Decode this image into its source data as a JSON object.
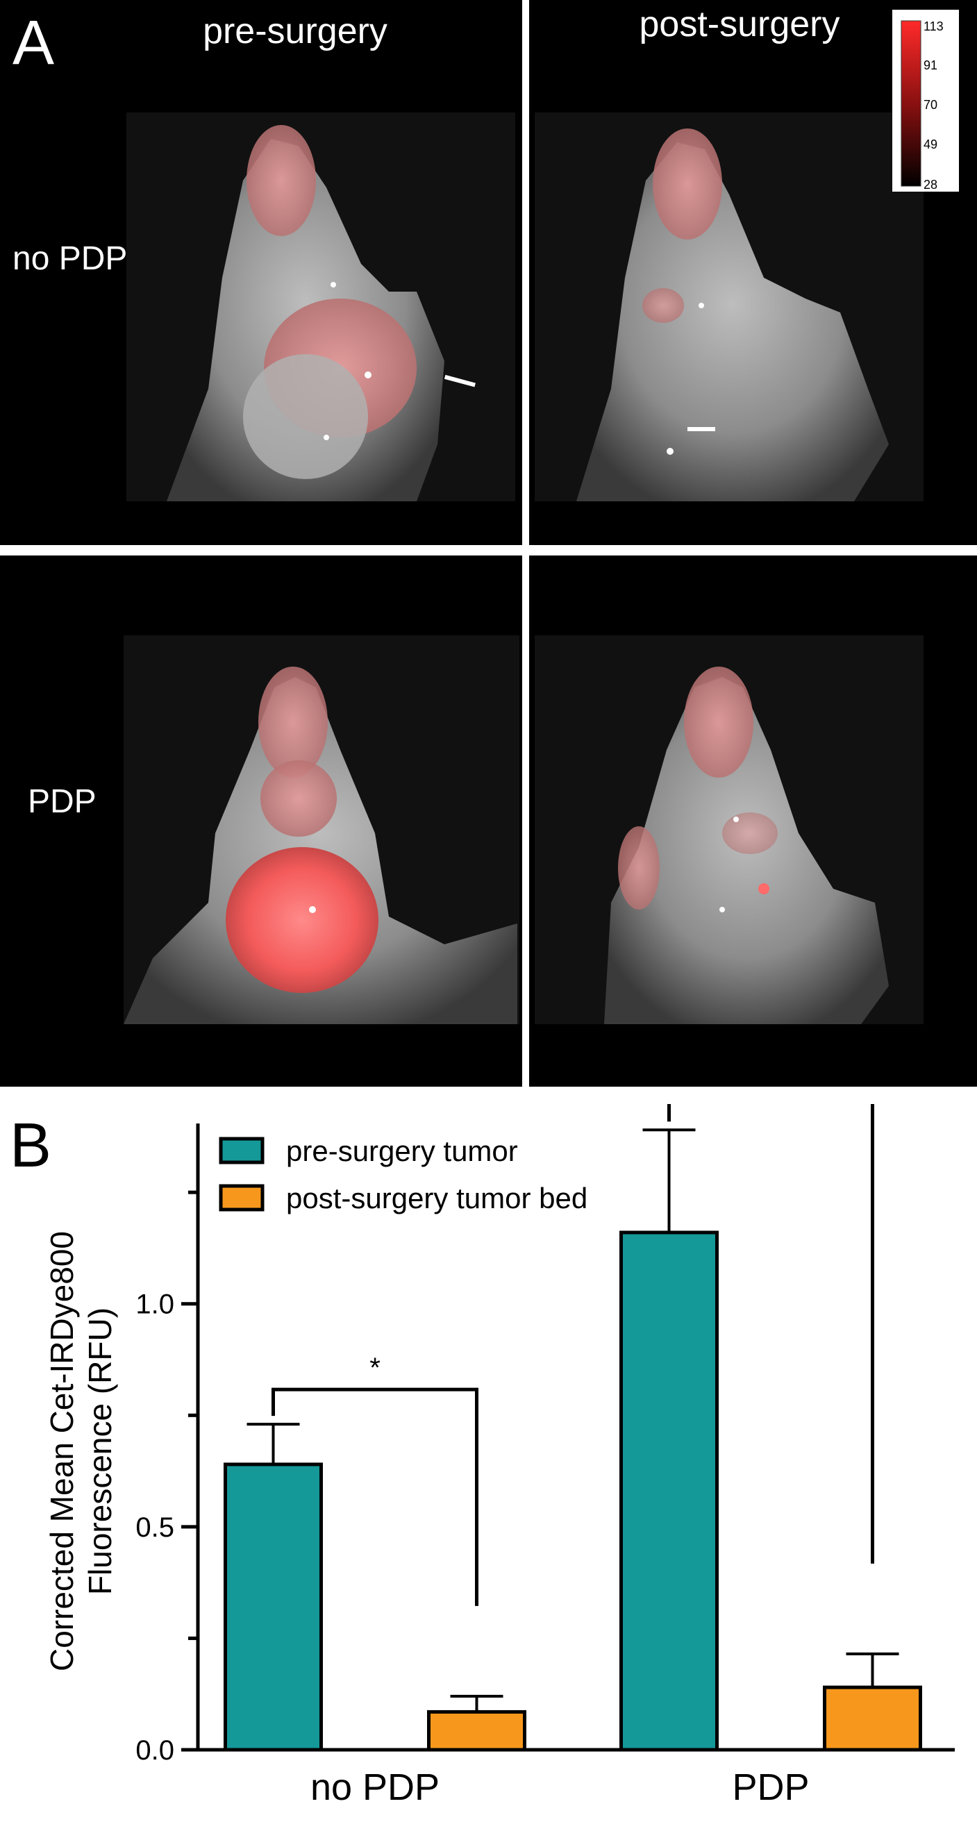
{
  "panel_a": {
    "letter": "A",
    "column_labels": [
      "pre-surgery",
      "post-surgery"
    ],
    "row_labels": [
      "no PDP",
      "PDP"
    ],
    "colorbar": {
      "ticks": [
        "113",
        "91",
        "70",
        "49",
        "28"
      ],
      "colors": {
        "top": "#ff2a2a",
        "mid": "#8a1010",
        "bottom": "#000000"
      }
    }
  },
  "panel_b": {
    "letter": "B"
  },
  "chart_data": {
    "type": "bar",
    "categories": [
      "no PDP",
      "PDP"
    ],
    "series": [
      {
        "name": "pre-surgery tumor",
        "values": [
          0.64,
          1.16
        ],
        "errors": [
          0.09,
          0.23
        ],
        "color": "#159898"
      },
      {
        "name": "post-surgery tumor bed",
        "values": [
          0.085,
          0.14
        ],
        "errors": [
          0.035,
          0.075
        ],
        "color": "#f7981d"
      }
    ],
    "ylabel_lines": [
      "Corrected Mean Cet-IRDye800",
      "Fluorescence (RFU)"
    ],
    "xlabel": "",
    "ylim": [
      0,
      1.42
    ],
    "yticks": [
      "0.0",
      "0.5",
      "1.0"
    ],
    "ytick_values": [
      0.0,
      0.5,
      1.0
    ],
    "minor_ytick_values": [
      0.25,
      0.75,
      1.25
    ],
    "legend_position": "top-left",
    "grid": false,
    "significance": [
      {
        "category": "no PDP",
        "label": "*"
      },
      {
        "category": "PDP",
        "label": "***"
      }
    ]
  }
}
